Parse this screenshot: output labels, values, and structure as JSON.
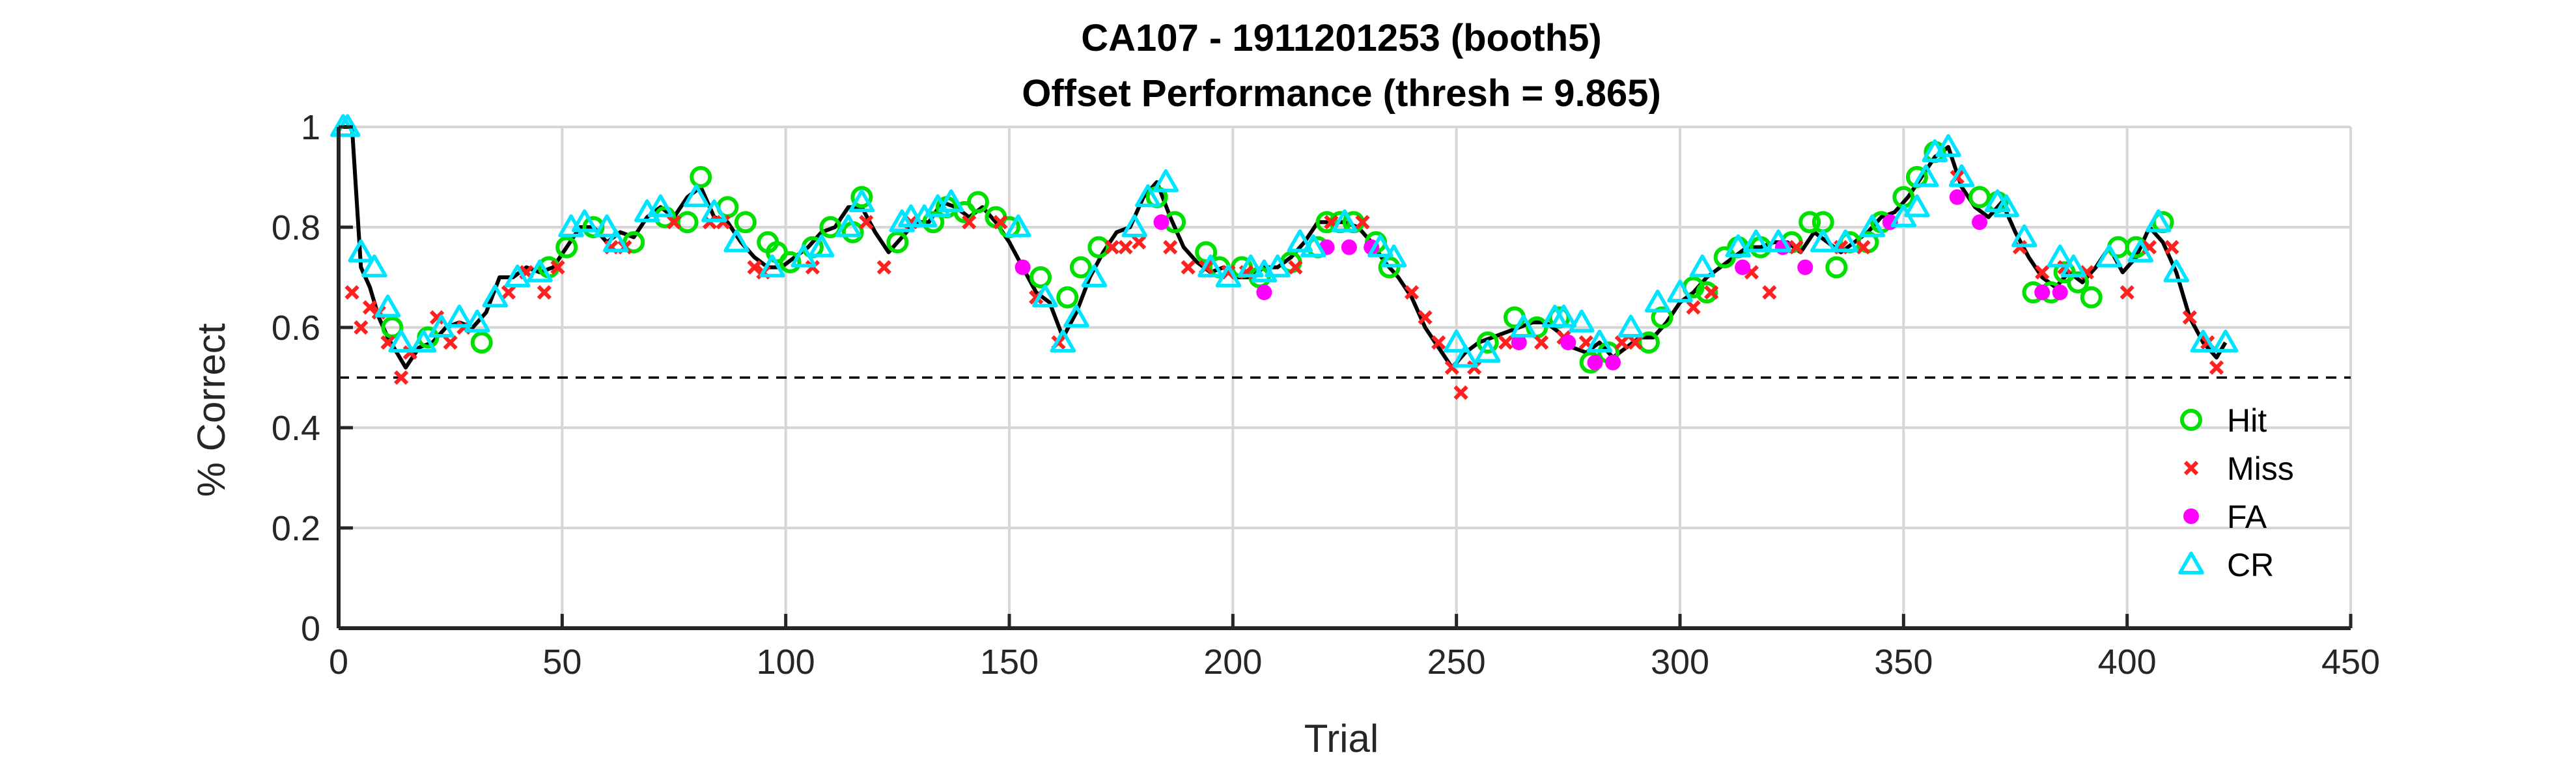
{
  "chart_data": {
    "type": "scatter",
    "title": "CA107 - 1911201253 (booth5)",
    "subtitle": "Offset Performance (thresh = 9.865)",
    "xlabel": "Trial",
    "ylabel": "% Correct",
    "xlim": [
      0,
      450
    ],
    "ylim": [
      0,
      1
    ],
    "xticks": [
      0,
      50,
      100,
      150,
      200,
      250,
      300,
      350,
      400,
      450
    ],
    "yticks": [
      0,
      0.2,
      0.4,
      0.6,
      0.8,
      1
    ],
    "xtick_labels": [
      "0",
      "50",
      "100",
      "150",
      "200",
      "250",
      "300",
      "350",
      "400",
      "450"
    ],
    "ytick_labels": [
      "0",
      "0.2",
      "0.4",
      "0.6",
      "0.8",
      "1"
    ],
    "grid": true,
    "legend_position": "bottom-right",
    "reference_line": {
      "y": 0.5,
      "style": "dashed"
    },
    "line": {
      "color": "#000000",
      "x": [
        1,
        3,
        5,
        7,
        9,
        11,
        13,
        15,
        18,
        21,
        24,
        27,
        30,
        33,
        36,
        39,
        42,
        45,
        48,
        51,
        54,
        57,
        60,
        63,
        66,
        69,
        72,
        75,
        78,
        81,
        84,
        87,
        90,
        93,
        96,
        99,
        102,
        105,
        108,
        111,
        114,
        117,
        120,
        123,
        126,
        129,
        132,
        135,
        138,
        141,
        144,
        147,
        150,
        153,
        156,
        159,
        162,
        165,
        168,
        171,
        174,
        177,
        180,
        183,
        186,
        189,
        192,
        195,
        198,
        201,
        204,
        207,
        210,
        213,
        216,
        219,
        222,
        225,
        228,
        231,
        234,
        237,
        240,
        243,
        246,
        249,
        252,
        255,
        258,
        261,
        264,
        267,
        270,
        273,
        276,
        279,
        282,
        285,
        288,
        291,
        294,
        297,
        300,
        303,
        306,
        309,
        312,
        315,
        318,
        321,
        324,
        327,
        330,
        333,
        336,
        339,
        342,
        345,
        348,
        351,
        354,
        357,
        360,
        363,
        366,
        369,
        372,
        375,
        378,
        381,
        384,
        387,
        390,
        393,
        396,
        399,
        402,
        405,
        408,
        411,
        414,
        417,
        420,
        422
      ],
      "y": [
        1,
        1,
        0.72,
        0.68,
        0.62,
        0.58,
        0.55,
        0.52,
        0.56,
        0.57,
        0.6,
        0.61,
        0.6,
        0.63,
        0.7,
        0.7,
        0.72,
        0.71,
        0.72,
        0.76,
        0.8,
        0.8,
        0.77,
        0.79,
        0.78,
        0.82,
        0.84,
        0.82,
        0.86,
        0.88,
        0.82,
        0.81,
        0.77,
        0.74,
        0.72,
        0.72,
        0.74,
        0.76,
        0.79,
        0.8,
        0.84,
        0.84,
        0.79,
        0.75,
        0.78,
        0.81,
        0.81,
        0.85,
        0.84,
        0.82,
        0.84,
        0.81,
        0.77,
        0.72,
        0.67,
        0.65,
        0.58,
        0.63,
        0.7,
        0.75,
        0.79,
        0.8,
        0.86,
        0.89,
        0.82,
        0.76,
        0.73,
        0.71,
        0.72,
        0.7,
        0.7,
        0.72,
        0.72,
        0.74,
        0.77,
        0.81,
        0.81,
        0.81,
        0.8,
        0.77,
        0.73,
        0.7,
        0.66,
        0.6,
        0.56,
        0.52,
        0.55,
        0.57,
        0.58,
        0.59,
        0.6,
        0.61,
        0.61,
        0.59,
        0.56,
        0.55,
        0.57,
        0.54,
        0.56,
        0.58,
        0.58,
        0.61,
        0.65,
        0.67,
        0.7,
        0.72,
        0.74,
        0.76,
        0.76,
        0.77,
        0.77,
        0.75,
        0.79,
        0.77,
        0.75,
        0.77,
        0.79,
        0.82,
        0.83,
        0.86,
        0.9,
        0.94,
        0.96,
        0.88,
        0.84,
        0.82,
        0.85,
        0.79,
        0.74,
        0.7,
        0.68,
        0.71,
        0.69,
        0.72,
        0.76,
        0.71,
        0.74,
        0.8,
        0.77,
        0.71,
        0.62,
        0.57,
        0.54,
        0.57
      ]
    },
    "series": [
      {
        "name": "Hit",
        "marker": "circle-open",
        "color": "#00e000",
        "x": [
          12,
          20,
          32,
          47,
          51,
          57,
          66,
          73,
          78,
          81,
          87,
          91,
          96,
          98,
          101,
          106,
          110,
          115,
          117,
          125,
          133,
          136,
          140,
          143,
          147,
          150,
          157,
          163,
          166,
          170,
          183,
          187,
          194,
          197,
          202,
          206,
          213,
          219,
          221,
          224,
          227,
          232,
          235,
          257,
          263,
          268,
          273,
          280,
          284,
          293,
          296,
          303,
          306,
          310,
          313,
          318,
          325,
          329,
          332,
          335,
          338,
          342,
          345,
          350,
          353,
          357,
          367,
          371,
          379,
          383,
          386,
          389,
          392,
          398,
          402,
          408
        ],
        "y": [
          0.6,
          0.58,
          0.57,
          0.72,
          0.76,
          0.8,
          0.77,
          0.82,
          0.81,
          0.9,
          0.84,
          0.81,
          0.77,
          0.75,
          0.73,
          0.76,
          0.8,
          0.79,
          0.86,
          0.77,
          0.81,
          0.84,
          0.83,
          0.85,
          0.82,
          0.8,
          0.7,
          0.66,
          0.72,
          0.76,
          0.86,
          0.81,
          0.75,
          0.72,
          0.72,
          0.7,
          0.73,
          0.76,
          0.81,
          0.81,
          0.81,
          0.77,
          0.72,
          0.57,
          0.62,
          0.6,
          0.62,
          0.53,
          0.55,
          0.57,
          0.62,
          0.68,
          0.67,
          0.74,
          0.76,
          0.76,
          0.77,
          0.81,
          0.81,
          0.72,
          0.77,
          0.77,
          0.81,
          0.86,
          0.9,
          0.95,
          0.86,
          0.85,
          0.67,
          0.67,
          0.71,
          0.69,
          0.66,
          0.76,
          0.76,
          0.81
        ]
      },
      {
        "name": "Miss",
        "marker": "x",
        "color": "#ff2020",
        "x": [
          3,
          5,
          7,
          9,
          11,
          14,
          16,
          22,
          25,
          28,
          38,
          42,
          46,
          49,
          61,
          64,
          75,
          83,
          86,
          93,
          95,
          106,
          118,
          122,
          128,
          141,
          148,
          156,
          161,
          173,
          176,
          179,
          186,
          190,
          194,
          199,
          203,
          214,
          222,
          229,
          240,
          243,
          246,
          249,
          251,
          254,
          261,
          269,
          274,
          279,
          287,
          290,
          303,
          307,
          316,
          320,
          326,
          336,
          341,
          362,
          376,
          381,
          386,
          391,
          400,
          405,
          410,
          414,
          418,
          420
        ],
        "y": [
          0.67,
          0.6,
          0.64,
          0.63,
          0.57,
          0.5,
          0.55,
          0.62,
          0.57,
          0.6,
          0.67,
          0.71,
          0.67,
          0.72,
          0.76,
          0.76,
          0.81,
          0.81,
          0.81,
          0.72,
          0.71,
          0.72,
          0.81,
          0.72,
          0.81,
          0.81,
          0.81,
          0.66,
          0.57,
          0.76,
          0.76,
          0.77,
          0.76,
          0.72,
          0.72,
          0.71,
          0.71,
          0.72,
          0.81,
          0.81,
          0.67,
          0.62,
          0.57,
          0.52,
          0.47,
          0.52,
          0.57,
          0.57,
          0.58,
          0.57,
          0.57,
          0.57,
          0.64,
          0.67,
          0.71,
          0.67,
          0.76,
          0.76,
          0.76,
          0.9,
          0.76,
          0.71,
          0.72,
          0.71,
          0.67,
          0.76,
          0.76,
          0.62,
          0.57,
          0.52
        ]
      },
      {
        "name": "FA",
        "marker": "dot",
        "color": "#ff00ff",
        "x": [
          153,
          184,
          207,
          221,
          226,
          231,
          264,
          275,
          281,
          285,
          314,
          323,
          328,
          347,
          362,
          367,
          381,
          385
        ],
        "y": [
          0.72,
          0.81,
          0.67,
          0.76,
          0.76,
          0.76,
          0.57,
          0.57,
          0.53,
          0.53,
          0.72,
          0.76,
          0.72,
          0.81,
          0.86,
          0.81,
          0.67,
          0.67
        ]
      },
      {
        "name": "CR",
        "marker": "triangle-open",
        "color": "#00e5ff",
        "x": [
          1,
          2,
          5,
          8,
          11,
          14,
          19,
          23,
          27,
          31,
          35,
          40,
          45,
          52,
          55,
          60,
          62,
          69,
          72,
          80,
          84,
          89,
          97,
          104,
          108,
          114,
          117,
          126,
          128,
          131,
          134,
          137,
          152,
          158,
          162,
          165,
          169,
          178,
          181,
          185,
          195,
          199,
          204,
          207,
          210,
          215,
          218,
          225,
          233,
          236,
          250,
          252,
          257,
          265,
          272,
          274,
          278,
          282,
          289,
          295,
          300,
          305,
          313,
          317,
          322,
          332,
          337,
          343,
          350,
          353,
          355,
          357,
          360,
          363,
          371,
          373,
          377,
          385,
          388,
          396,
          403,
          407,
          411,
          417,
          422
        ],
        "y": [
          1,
          1,
          0.75,
          0.72,
          0.64,
          0.57,
          0.57,
          0.6,
          0.62,
          0.61,
          0.66,
          0.7,
          0.71,
          0.8,
          0.81,
          0.8,
          0.77,
          0.83,
          0.84,
          0.86,
          0.83,
          0.77,
          0.72,
          0.74,
          0.76,
          0.8,
          0.85,
          0.81,
          0.82,
          0.82,
          0.84,
          0.85,
          0.8,
          0.66,
          0.57,
          0.62,
          0.7,
          0.8,
          0.86,
          0.89,
          0.72,
          0.7,
          0.72,
          0.71,
          0.72,
          0.77,
          0.76,
          0.81,
          0.76,
          0.74,
          0.57,
          0.54,
          0.55,
          0.6,
          0.62,
          0.62,
          0.61,
          0.57,
          0.6,
          0.65,
          0.67,
          0.72,
          0.76,
          0.77,
          0.77,
          0.77,
          0.77,
          0.8,
          0.82,
          0.84,
          0.9,
          0.95,
          0.96,
          0.9,
          0.85,
          0.84,
          0.78,
          0.74,
          0.72,
          0.74,
          0.75,
          0.81,
          0.71,
          0.57,
          0.57
        ]
      }
    ]
  }
}
